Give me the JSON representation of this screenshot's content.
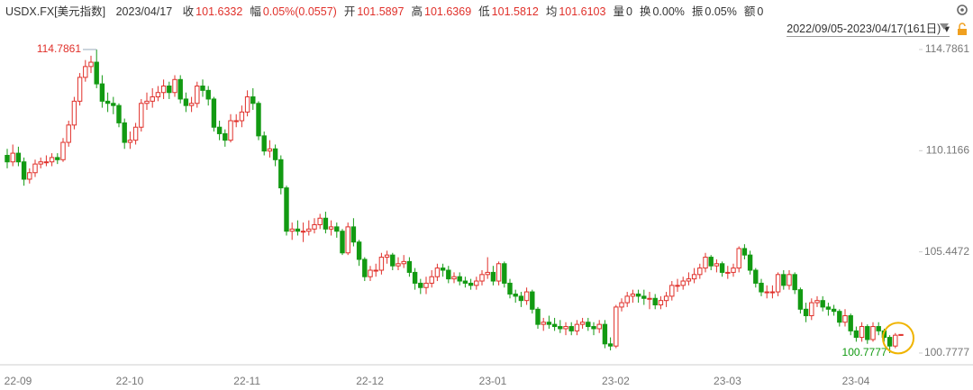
{
  "header": {
    "symbol": "USDX.FX[美元指数]",
    "date": "2023/04/17",
    "fields": [
      {
        "label": "收",
        "value": "101.6332",
        "color": "#e0302a"
      },
      {
        "label": "幅",
        "value": "0.05%(0.0557)",
        "color": "#e0302a"
      },
      {
        "label": "开",
        "value": "101.5897",
        "color": "#e0302a"
      },
      {
        "label": "高",
        "value": "101.6369",
        "color": "#e0302a"
      },
      {
        "label": "低",
        "value": "101.5812",
        "color": "#e0302a"
      },
      {
        "label": "均",
        "value": "101.6103",
        "color": "#e0302a"
      },
      {
        "label": "量",
        "value": "0",
        "color": "#333333"
      },
      {
        "label": "换",
        "value": "0.00%",
        "color": "#333333"
      },
      {
        "label": "振",
        "value": "0.05%",
        "color": "#333333"
      },
      {
        "label": "额",
        "value": "0",
        "color": "#333333"
      }
    ],
    "range": "2022/09/05-2023/04/17(161日)"
  },
  "chart_data": {
    "type": "candlestick",
    "up_color": "#e0302a",
    "down_color": "#129a12",
    "ylim": [
      100.36,
      115.2
    ],
    "yticks": [
      114.7861,
      110.1166,
      105.4472,
      100.7777
    ],
    "grid": false,
    "max_index": 16,
    "min_index": 158,
    "categories": [
      "22-09",
      null,
      null,
      null,
      null,
      null,
      null,
      null,
      null,
      null,
      null,
      null,
      null,
      null,
      null,
      null,
      null,
      null,
      null,
      null,
      "22-10",
      null,
      null,
      null,
      null,
      null,
      null,
      null,
      null,
      null,
      null,
      null,
      null,
      null,
      null,
      null,
      null,
      null,
      null,
      null,
      null,
      "22-11",
      null,
      null,
      null,
      null,
      null,
      null,
      null,
      null,
      null,
      null,
      null,
      null,
      null,
      null,
      null,
      null,
      null,
      null,
      null,
      null,
      null,
      "22-12",
      null,
      null,
      null,
      null,
      null,
      null,
      null,
      null,
      null,
      null,
      null,
      null,
      null,
      null,
      null,
      null,
      null,
      null,
      null,
      null,
      null,
      "23-01",
      null,
      null,
      null,
      null,
      null,
      null,
      null,
      null,
      null,
      null,
      null,
      null,
      null,
      null,
      null,
      null,
      null,
      null,
      null,
      null,
      null,
      "23-02",
      null,
      null,
      null,
      null,
      null,
      null,
      null,
      null,
      null,
      null,
      null,
      null,
      null,
      null,
      null,
      null,
      null,
      null,
      null,
      "23-03",
      null,
      null,
      null,
      null,
      null,
      null,
      null,
      null,
      null,
      null,
      null,
      null,
      null,
      null,
      null,
      null,
      null,
      null,
      null,
      null,
      null,
      null,
      "23-04",
      null,
      null,
      null,
      null,
      null,
      null,
      null,
      null,
      null,
      null
    ],
    "open": [
      109.9,
      109.6,
      110.0,
      109.6,
      108.8,
      109.1,
      109.5,
      109.6,
      109.6,
      109.8,
      109.7,
      110.5,
      111.3,
      112.4,
      113.5,
      114.0,
      114.2,
      113.2,
      112.4,
      112.3,
      112.2,
      111.4,
      110.5,
      110.6,
      111.2,
      112.3,
      112.4,
      112.6,
      112.8,
      113.1,
      112.8,
      113.4,
      112.5,
      112.2,
      112.3,
      113.1,
      112.9,
      112.5,
      111.2,
      110.9,
      110.6,
      111.5,
      111.5,
      111.9,
      112.6,
      112.3,
      110.8,
      110.1,
      110.2,
      109.7,
      108.4,
      106.4,
      106.5,
      106.4,
      106.4,
      106.5,
      106.7,
      107.0,
      106.5,
      106.6,
      106.4,
      105.4,
      106.6,
      105.9,
      105.1,
      104.3,
      104.6,
      104.6,
      105.2,
      105.3,
      104.8,
      104.9,
      105.0,
      104.5,
      104.0,
      103.8,
      104.0,
      104.3,
      104.7,
      104.6,
      104.2,
      104.3,
      104.1,
      104.0,
      103.9,
      104.1,
      104.4,
      104.5,
      104.1,
      104.9,
      104.0,
      103.5,
      103.4,
      103.2,
      103.6,
      102.8,
      102.1,
      102.2,
      102.1,
      102.0,
      101.9,
      102.0,
      101.8,
      102.1,
      102.2,
      102.0,
      101.9,
      102.1,
      101.2,
      101.1,
      102.9,
      103.1,
      103.4,
      103.5,
      103.4,
      103.3,
      103.3,
      103.0,
      103.2,
      103.4,
      103.9,
      103.9,
      104.1,
      104.2,
      104.4,
      104.7,
      105.2,
      104.8,
      104.9,
      104.5,
      104.5,
      104.7,
      105.6,
      105.3,
      104.6,
      104.0,
      103.6,
      103.6,
      103.6,
      104.4,
      103.9,
      104.4,
      103.7,
      102.8,
      102.5,
      103.1,
      103.2,
      102.9,
      102.8,
      102.7,
      102.2,
      102.5,
      101.8,
      101.5,
      102.0,
      101.4,
      102.0,
      101.8,
      101.5,
      101.1,
      101.5897
    ],
    "high": [
      110.2,
      110.4,
      110.3,
      109.8,
      109.3,
      109.7,
      109.8,
      109.9,
      110.0,
      110.0,
      110.7,
      111.5,
      112.6,
      113.7,
      114.3,
      114.5,
      114.7861,
      113.6,
      112.8,
      112.6,
      112.3,
      111.6,
      111.0,
      111.4,
      112.5,
      112.8,
      113.0,
      113.1,
      113.4,
      113.3,
      113.6,
      113.6,
      112.8,
      112.6,
      113.3,
      113.4,
      113.1,
      112.6,
      111.5,
      111.1,
      111.8,
      111.8,
      112.2,
      112.9,
      113.0,
      112.4,
      111.0,
      110.6,
      110.4,
      109.9,
      108.5,
      106.8,
      106.9,
      106.8,
      106.9,
      107.0,
      107.2,
      107.3,
      106.9,
      106.8,
      106.5,
      106.8,
      107.0,
      106.0,
      105.2,
      104.8,
      104.9,
      105.4,
      105.5,
      105.4,
      105.2,
      105.3,
      105.2,
      104.7,
      104.2,
      104.3,
      104.6,
      104.9,
      104.9,
      104.8,
      104.5,
      104.5,
      104.3,
      104.2,
      104.3,
      104.6,
      105.2,
      104.8,
      105.0,
      105.0,
      104.2,
      103.7,
      103.6,
      103.8,
      103.7,
      102.9,
      102.4,
      102.5,
      102.4,
      102.3,
      102.2,
      102.2,
      102.3,
      102.4,
      102.4,
      102.2,
      102.3,
      102.3,
      101.5,
      103.0,
      103.3,
      103.6,
      103.7,
      103.7,
      103.7,
      103.6,
      103.5,
      103.4,
      103.6,
      104.1,
      104.2,
      104.3,
      104.5,
      104.7,
      104.9,
      105.4,
      105.3,
      105.1,
      105.0,
      104.8,
      104.9,
      105.7,
      105.8,
      105.5,
      104.7,
      104.2,
      103.9,
      103.9,
      104.5,
      104.6,
      104.6,
      104.5,
      103.8,
      103.1,
      103.3,
      103.4,
      103.4,
      103.1,
      103.0,
      102.8,
      102.8,
      102.6,
      102.0,
      102.2,
      102.1,
      102.2,
      102.2,
      101.9,
      101.6,
      101.7,
      101.6369
    ],
    "low": [
      109.3,
      109.4,
      109.4,
      108.5,
      108.6,
      108.9,
      109.3,
      109.4,
      109.4,
      109.5,
      109.6,
      110.3,
      111.1,
      112.2,
      113.3,
      113.7,
      113.0,
      112.1,
      111.9,
      111.8,
      111.2,
      110.2,
      110.2,
      110.4,
      111.0,
      112.0,
      112.1,
      112.4,
      112.5,
      112.5,
      112.6,
      112.3,
      111.9,
      111.9,
      112.1,
      112.6,
      112.2,
      111.0,
      110.6,
      110.3,
      110.5,
      111.2,
      111.2,
      111.7,
      112.0,
      110.6,
      109.9,
      109.8,
      109.4,
      108.1,
      106.2,
      106.0,
      106.2,
      105.9,
      106.2,
      106.3,
      106.5,
      106.3,
      106.2,
      106.1,
      105.3,
      105.3,
      105.7,
      104.8,
      104.1,
      104.1,
      104.3,
      104.4,
      104.9,
      104.6,
      104.6,
      104.7,
      104.3,
      103.7,
      103.5,
      103.5,
      103.8,
      104.1,
      104.3,
      104.0,
      104.0,
      103.9,
      103.8,
      103.7,
      103.7,
      103.9,
      104.2,
      103.9,
      103.9,
      103.8,
      103.3,
      103.1,
      102.9,
      103.0,
      102.6,
      101.9,
      101.8,
      101.9,
      101.8,
      101.7,
      101.6,
      101.6,
      101.6,
      101.9,
      101.8,
      101.6,
      101.7,
      101.0,
      100.9,
      101.0,
      102.7,
      102.9,
      103.1,
      103.1,
      103.0,
      102.8,
      102.8,
      102.8,
      102.9,
      103.2,
      103.6,
      103.7,
      103.9,
      104.0,
      104.2,
      104.5,
      104.6,
      104.5,
      104.3,
      104.2,
      104.3,
      104.5,
      105.1,
      104.4,
      103.8,
      103.4,
      103.3,
      103.3,
      103.4,
      103.7,
      103.7,
      103.5,
      102.6,
      102.2,
      102.3,
      102.9,
      102.7,
      102.5,
      102.5,
      102.0,
      102.0,
      101.6,
      101.3,
      101.3,
      101.2,
      101.3,
      101.6,
      101.3,
      100.7777,
      101.0,
      101.5812
    ],
    "close": [
      109.6,
      110.0,
      109.6,
      108.8,
      109.1,
      109.5,
      109.6,
      109.6,
      109.8,
      109.7,
      110.5,
      111.3,
      112.4,
      113.5,
      114.0,
      114.2,
      113.2,
      112.4,
      112.3,
      112.2,
      111.4,
      110.5,
      110.6,
      111.2,
      112.3,
      112.4,
      112.6,
      112.8,
      113.1,
      112.8,
      113.4,
      112.5,
      112.2,
      112.3,
      113.1,
      112.9,
      112.5,
      111.2,
      110.9,
      110.6,
      111.5,
      111.5,
      111.9,
      112.6,
      112.3,
      110.8,
      110.1,
      110.2,
      109.7,
      108.4,
      106.4,
      106.5,
      106.4,
      106.4,
      106.5,
      106.7,
      107.0,
      106.5,
      106.6,
      106.4,
      105.4,
      106.6,
      105.9,
      105.1,
      104.3,
      104.6,
      104.6,
      105.2,
      105.3,
      104.8,
      104.9,
      105.0,
      104.5,
      104.0,
      103.8,
      104.0,
      104.3,
      104.7,
      104.6,
      104.2,
      104.3,
      104.1,
      104.0,
      103.9,
      104.1,
      104.4,
      104.5,
      104.1,
      104.9,
      104.0,
      103.5,
      103.4,
      103.2,
      103.6,
      102.8,
      102.1,
      102.2,
      102.1,
      102.0,
      101.9,
      102.0,
      101.8,
      102.1,
      102.2,
      102.0,
      101.9,
      102.1,
      101.2,
      101.1,
      102.9,
      103.1,
      103.4,
      103.5,
      103.4,
      103.3,
      103.3,
      103.0,
      103.2,
      103.4,
      103.9,
      103.9,
      104.1,
      104.2,
      104.4,
      104.7,
      105.2,
      104.8,
      104.9,
      104.5,
      104.5,
      104.7,
      105.6,
      105.3,
      104.6,
      104.0,
      103.6,
      103.6,
      103.6,
      104.4,
      103.9,
      104.4,
      103.7,
      102.8,
      102.5,
      103.1,
      103.2,
      102.9,
      102.8,
      102.7,
      102.2,
      102.5,
      101.8,
      101.5,
      102.0,
      101.4,
      102.0,
      101.8,
      101.5,
      101.1,
      101.6,
      101.6332
    ]
  }
}
